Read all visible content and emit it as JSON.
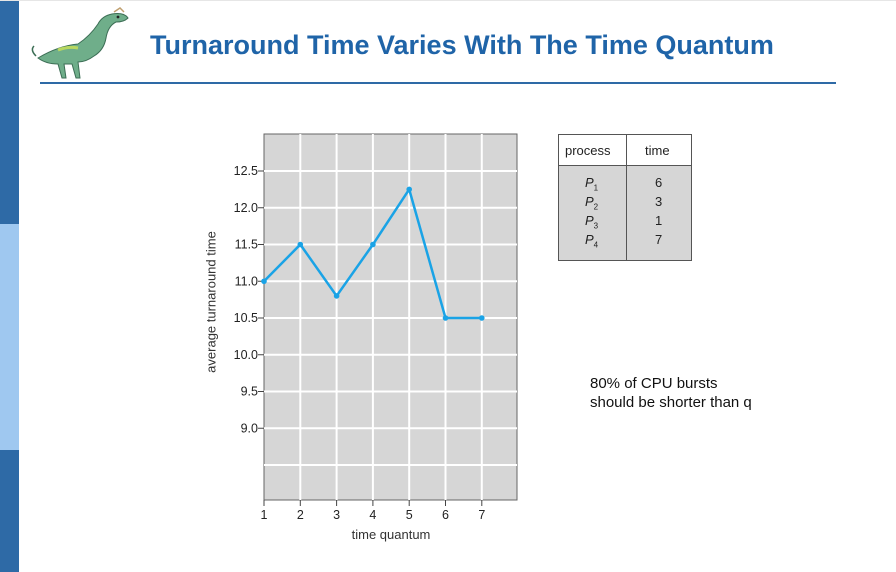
{
  "slide": {
    "title": "Turnaround Time Varies With The Time Quantum",
    "note_line1": "80% of CPU bursts",
    "note_line2": "should be shorter than q"
  },
  "process_table": {
    "headers": [
      "process",
      "time"
    ],
    "rows": [
      {
        "process": "P",
        "sub": "1",
        "time": "6"
      },
      {
        "process": "P",
        "sub": "2",
        "time": "3"
      },
      {
        "process": "P",
        "sub": "3",
        "time": "1"
      },
      {
        "process": "P",
        "sub": "4",
        "time": "7"
      }
    ]
  },
  "colors": {
    "accent": "#1f64a8",
    "line": "#1aa3e6",
    "grid_bg": "#d6d6d6",
    "sidebar_dark": "#2e6aa6",
    "sidebar_light": "#9fc8f0"
  },
  "chart_data": {
    "type": "line",
    "xlabel": "time quantum",
    "ylabel": "average turnaround time",
    "x": [
      1,
      2,
      3,
      4,
      5,
      6,
      7
    ],
    "x_ticks": [
      "1",
      "2",
      "3",
      "4",
      "5",
      "6",
      "7"
    ],
    "y_ticks": [
      "12.5",
      "12.0",
      "11.5",
      "11.0",
      "10.5",
      "10.0",
      "9.5",
      "9.0"
    ],
    "y_tick_values": [
      12.5,
      12.0,
      11.5,
      11.0,
      10.5,
      10.0,
      9.5,
      9.0
    ],
    "series": [
      {
        "values": [
          11.0,
          11.5,
          10.8,
          11.5,
          12.25,
          10.5,
          10.5
        ]
      }
    ],
    "xlim": [
      1,
      7
    ],
    "ylim": [
      8.4,
      13.0
    ],
    "grid": true
  }
}
